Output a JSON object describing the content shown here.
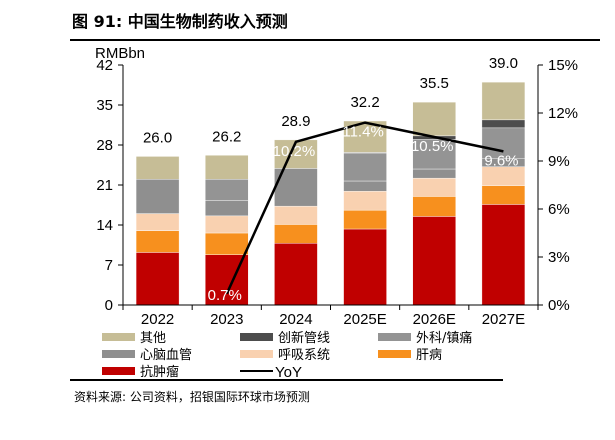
{
  "title": "图 91: 中国生物制药收入预测",
  "source": "资料来源: 公司资料，招银国际环球市场预测",
  "chart_data": {
    "type": "bar",
    "stacked": true,
    "categories": [
      "2022",
      "2023",
      "2024",
      "2025E",
      "2026E",
      "2027E"
    ],
    "ylabel": "RMBbn",
    "ylim": [
      0,
      42
    ],
    "yticks": [
      0,
      7,
      14,
      21,
      28,
      35,
      42
    ],
    "y2lim": [
      0,
      15
    ],
    "y2ticks": [
      "0%",
      "3%",
      "6%",
      "9%",
      "12%",
      "15%"
    ],
    "grid": false,
    "legend_position": "bottom",
    "series": [
      {
        "name": "抗肿瘤",
        "color": "#c00000",
        "values": [
          9.2,
          8.8,
          10.8,
          13.3,
          15.5,
          17.6
        ]
      },
      {
        "name": "肝病",
        "color": "#f7901e",
        "values": [
          3.8,
          3.8,
          3.3,
          3.3,
          3.5,
          3.3
        ]
      },
      {
        "name": "呼吸系统",
        "color": "#f9d1b0",
        "values": [
          3.0,
          3.0,
          3.2,
          3.3,
          3.2,
          3.3
        ]
      },
      {
        "name": "心脑血管",
        "color": "#8f8f8f",
        "values": [
          6.0,
          2.7,
          6.6,
          1.8,
          1.6,
          1.4
        ]
      },
      {
        "name": "外科/镇痛",
        "color": "#949494",
        "values": [
          0,
          3.7,
          0,
          4.9,
          5.2,
          5.4
        ]
      },
      {
        "name": "创新管线",
        "color": "#4d4d4d",
        "values": [
          0,
          0,
          0,
          0.1,
          0.6,
          1.4
        ]
      },
      {
        "name": "其他",
        "color": "#c6bd96",
        "values": [
          4.0,
          4.2,
          5.0,
          5.5,
          5.9,
          6.6
        ]
      }
    ],
    "totals": [
      "26.0",
      "26.2",
      "28.9",
      "32.2",
      "35.5",
      "39.0"
    ],
    "line": {
      "name": "YoY",
      "color": "#000000",
      "axis": "right",
      "values": [
        null,
        0.7,
        10.2,
        11.4,
        10.5,
        9.6
      ],
      "labels": [
        "",
        "0.7%",
        "10.2%",
        "11.4%",
        "10.5%",
        "9.6%"
      ]
    },
    "legend_order": [
      "其他",
      "创新管线",
      "外科/镇痛",
      "心脑血管",
      "呼吸系统",
      "肝病",
      "抗肿瘤",
      "YoY"
    ]
  }
}
